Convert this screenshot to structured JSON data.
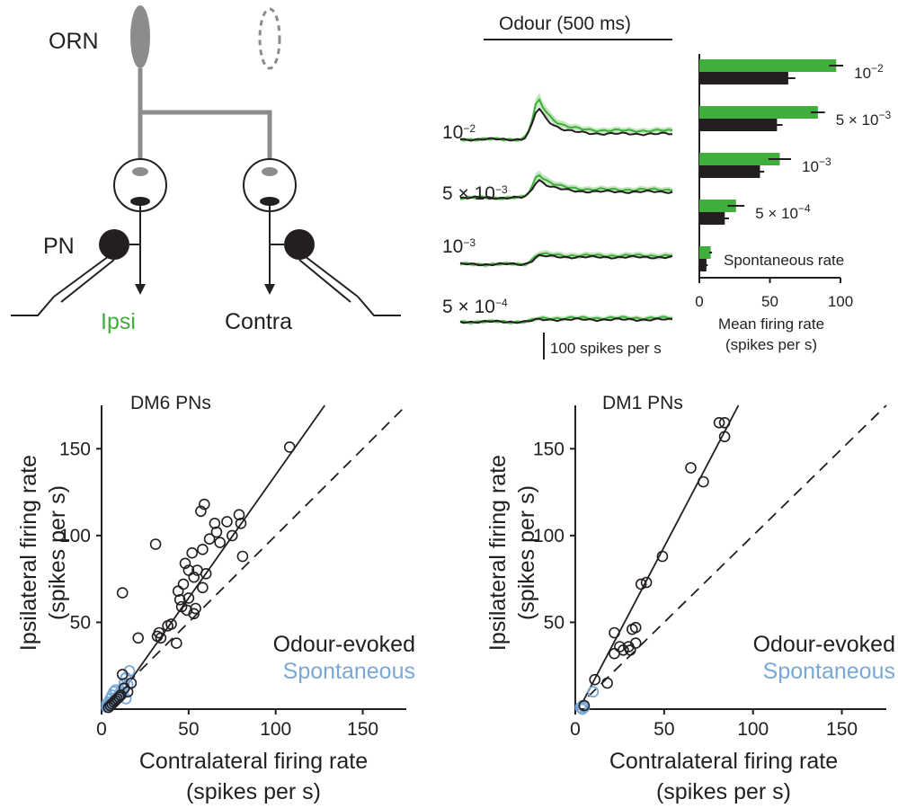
{
  "colors": {
    "ipsi": "#3fae3a",
    "contra": "#231f20",
    "spontaneous": "#7aa8d6",
    "orn": "#8c8c8c"
  },
  "schematic": {
    "orn_label": "ORN",
    "pn_label": "PN",
    "ipsi_label": "Ipsi",
    "contra_label": "Contra"
  },
  "traces": {
    "odour_label": "Odour (500 ms)",
    "scale_label": "100 spikes per s",
    "rows": [
      {
        "label_base": "10",
        "label_exp": "−2",
        "peak_ipsi": 160,
        "peak_contra": 125,
        "plateau_ipsi": 32,
        "plateau_contra": 20
      },
      {
        "label_base": "5 × 10",
        "label_exp": "−3",
        "peak_ipsi": 95,
        "peak_contra": 72,
        "plateau_ipsi": 30,
        "plateau_contra": 22
      },
      {
        "label_base": "10",
        "label_exp": "−3",
        "peak_ipsi": 40,
        "peak_contra": 32,
        "plateau_ipsi": 32,
        "plateau_contra": 26
      },
      {
        "label_base": "5 × 10",
        "label_exp": "−4",
        "peak_ipsi": 12,
        "peak_contra": 8,
        "plateau_ipsi": 14,
        "plateau_contra": 8
      }
    ]
  },
  "chart_data": [
    {
      "type": "bar",
      "orientation": "horizontal",
      "categories": [
        {
          "base": "10",
          "exp": "−2"
        },
        {
          "base": "5 × 10",
          "exp": "−3"
        },
        {
          "base": "10",
          "exp": "−3"
        },
        {
          "base": "5 × 10",
          "exp": "−4"
        },
        {
          "base": "Spontaneous rate",
          "exp": ""
        }
      ],
      "series": [
        {
          "values": [
            97,
            84,
            57,
            26,
            8
          ],
          "errors": [
            5,
            5,
            8,
            6,
            1
          ]
        },
        {
          "values": [
            63,
            55,
            43,
            18,
            5
          ],
          "errors": [
            5,
            4,
            3,
            3,
            1
          ]
        }
      ],
      "xlabel_line1": "Mean firing rate",
      "xlabel_line2": "(spikes per s)",
      "xlim": [
        0,
        100
      ],
      "xticks": [
        "0",
        "50",
        "100"
      ]
    },
    {
      "type": "scatter",
      "title": "DM6 PNs",
      "xlabel_line1": "Contralateral firing rate",
      "xlabel_line2": "(spikes per s)",
      "ylabel_line1": "Ipsilateral firing rate",
      "ylabel_line2": "(spikes per s)",
      "xlim": [
        0,
        175
      ],
      "ylim": [
        0,
        175
      ],
      "xticks": [
        "0",
        "50",
        "100",
        "150"
      ],
      "yticks": [
        "50",
        "100",
        "150"
      ],
      "legend": [
        "Odour-evoked",
        "Spontaneous"
      ],
      "fit_slope": 1.42,
      "fit_intercept": -7,
      "odour_evoked": [
        [
          108,
          151
        ],
        [
          31,
          95
        ],
        [
          57,
          114
        ],
        [
          59,
          118
        ],
        [
          65,
          107
        ],
        [
          72,
          108
        ],
        [
          79,
          112
        ],
        [
          80,
          107
        ],
        [
          75,
          100
        ],
        [
          66,
          102
        ],
        [
          62,
          98
        ],
        [
          58,
          92
        ],
        [
          52,
          90
        ],
        [
          81,
          88
        ],
        [
          68,
          96
        ],
        [
          48,
          84
        ],
        [
          50,
          80
        ],
        [
          55,
          80
        ],
        [
          60,
          78
        ],
        [
          53,
          76
        ],
        [
          47,
          72
        ],
        [
          58,
          70
        ],
        [
          44,
          68
        ],
        [
          45,
          63
        ],
        [
          50,
          64
        ],
        [
          46,
          59
        ],
        [
          49,
          57
        ],
        [
          54,
          58
        ],
        [
          53,
          55
        ],
        [
          38,
          48
        ],
        [
          40,
          49
        ],
        [
          33,
          44
        ],
        [
          32,
          42
        ],
        [
          34,
          41
        ],
        [
          43,
          38
        ],
        [
          12,
          67
        ],
        [
          21,
          41
        ],
        [
          12,
          20
        ],
        [
          17,
          15
        ],
        [
          13,
          12
        ],
        [
          15,
          10
        ],
        [
          11,
          8
        ],
        [
          10,
          7
        ],
        [
          9,
          6
        ],
        [
          8,
          5
        ],
        [
          7,
          4
        ],
        [
          6,
          3
        ],
        [
          5,
          2
        ],
        [
          4,
          1
        ]
      ],
      "spontaneous": [
        [
          3,
          1
        ],
        [
          4,
          2
        ],
        [
          5,
          3
        ],
        [
          6,
          4
        ],
        [
          7,
          5
        ],
        [
          8,
          6
        ],
        [
          9,
          7
        ],
        [
          10,
          8
        ],
        [
          11,
          10
        ],
        [
          12,
          12
        ],
        [
          13,
          15
        ],
        [
          14,
          18
        ],
        [
          16,
          22
        ],
        [
          5,
          6
        ],
        [
          6,
          8
        ],
        [
          7,
          10
        ],
        [
          8,
          11
        ],
        [
          15,
          14
        ],
        [
          4,
          4
        ],
        [
          3,
          3
        ],
        [
          12,
          9
        ],
        [
          14,
          6
        ]
      ]
    },
    {
      "type": "scatter",
      "title": "DM1 PNs",
      "xlabel_line1": "Contralateral firing rate",
      "xlabel_line2": "(spikes per s)",
      "ylabel_line1": "Ipsilateral firing rate",
      "ylabel_line2": "(spikes per s)",
      "xlim": [
        0,
        175
      ],
      "ylim": [
        0,
        175
      ],
      "xticks": [
        "0",
        "50",
        "100",
        "150"
      ],
      "yticks": [
        "50",
        "100",
        "150"
      ],
      "legend": [
        "Odour-evoked",
        "Spontaneous"
      ],
      "fit_slope": 1.95,
      "fit_intercept": -4,
      "odour_evoked": [
        [
          81,
          165
        ],
        [
          84,
          165
        ],
        [
          84,
          157
        ],
        [
          65,
          139
        ],
        [
          72,
          131
        ],
        [
          49,
          88
        ],
        [
          40,
          73
        ],
        [
          37,
          72
        ],
        [
          34,
          47
        ],
        [
          32,
          46
        ],
        [
          22,
          44
        ],
        [
          34,
          38
        ],
        [
          30,
          36
        ],
        [
          25,
          36
        ],
        [
          27,
          34
        ],
        [
          31,
          34
        ],
        [
          22,
          32
        ],
        [
          11,
          17
        ],
        [
          18,
          15
        ],
        [
          5,
          2
        ]
      ],
      "spontaneous": [
        [
          3,
          1
        ],
        [
          4,
          2
        ],
        [
          5,
          1
        ],
        [
          10,
          10
        ],
        [
          4,
          0
        ]
      ]
    }
  ]
}
